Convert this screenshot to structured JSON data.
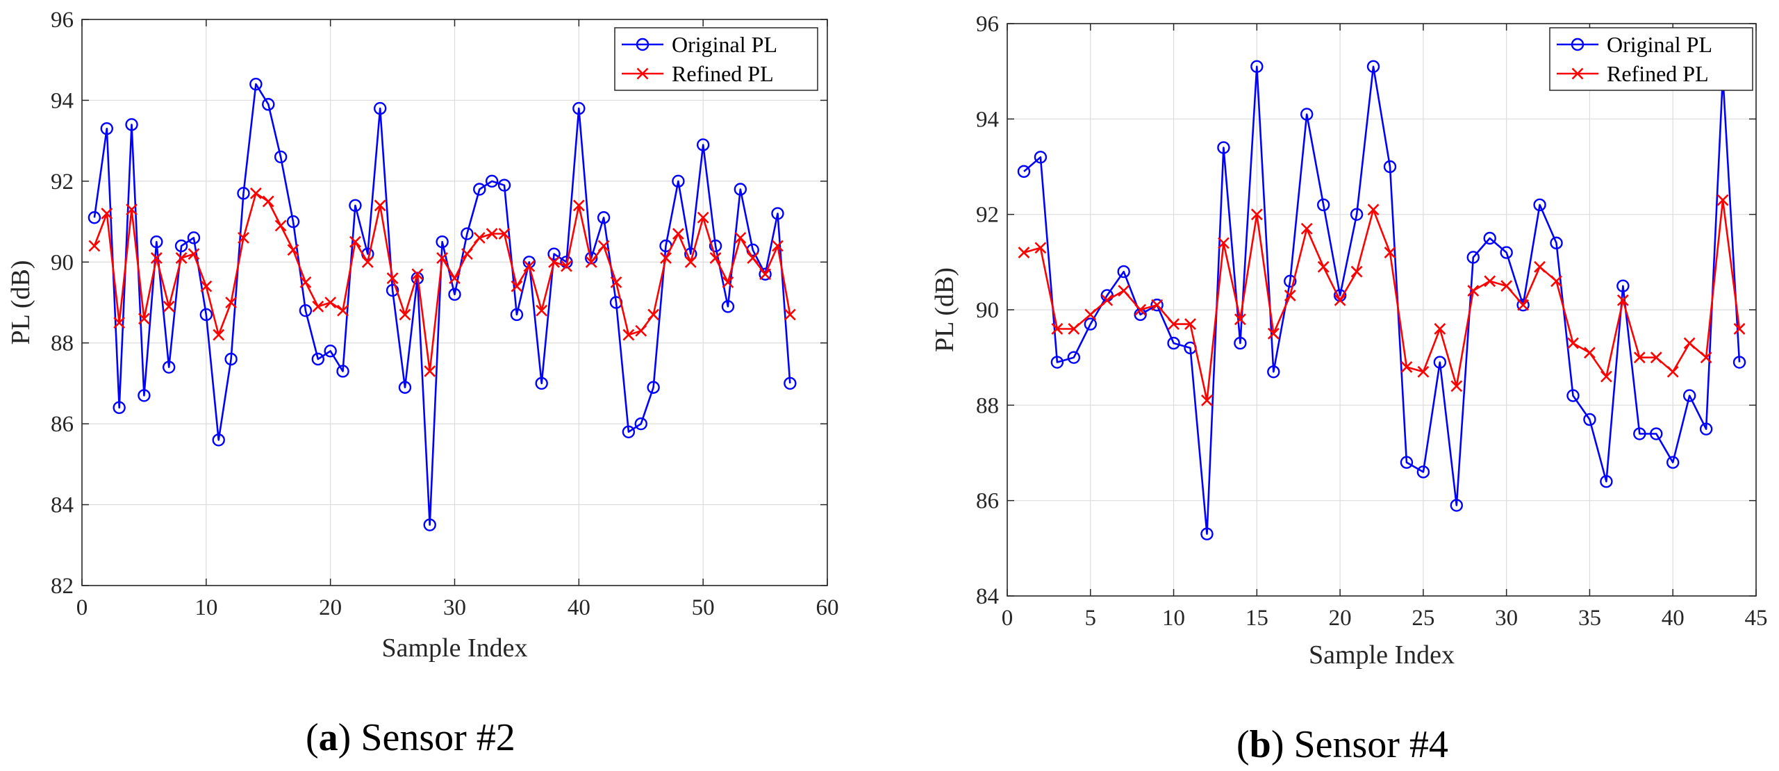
{
  "chart_data": [
    {
      "type": "line",
      "caption": {
        "letter": "a",
        "text": "Sensor #2"
      },
      "xlabel": "Sample Index",
      "ylabel": "PL (dB)",
      "xlim": [
        0,
        60
      ],
      "ylim": [
        82,
        96
      ],
      "xticks": [
        0,
        10,
        20,
        30,
        40,
        50,
        60
      ],
      "yticks": [
        82,
        84,
        86,
        88,
        90,
        92,
        94,
        96
      ],
      "grid": true,
      "legend_position": "top-right",
      "series": [
        {
          "name": "Original PL",
          "color": "#0000ff",
          "marker": "circle",
          "x": [
            1,
            2,
            3,
            4,
            5,
            6,
            7,
            8,
            9,
            10,
            11,
            12,
            13,
            14,
            15,
            16,
            17,
            18,
            19,
            20,
            21,
            22,
            23,
            24,
            25,
            26,
            27,
            28,
            29,
            30,
            31,
            32,
            33,
            34,
            35,
            36,
            37,
            38,
            39,
            40,
            41,
            42,
            43,
            44,
            45,
            46,
            47,
            48,
            49,
            50,
            51,
            52,
            53,
            54,
            55,
            56,
            57
          ],
          "values": [
            91.1,
            93.3,
            86.4,
            93.4,
            86.7,
            90.5,
            87.4,
            90.4,
            90.6,
            88.7,
            85.6,
            87.6,
            91.7,
            94.4,
            93.9,
            92.6,
            91.0,
            88.8,
            87.6,
            87.8,
            87.3,
            91.4,
            90.2,
            93.8,
            89.3,
            86.9,
            89.6,
            83.5,
            90.5,
            89.2,
            90.7,
            91.8,
            92.0,
            91.9,
            88.7,
            90.0,
            87.0,
            90.2,
            90.0,
            93.8,
            90.1,
            91.1,
            89.0,
            85.8,
            86.0,
            86.9,
            90.4,
            92.0,
            90.2,
            92.9,
            90.4,
            88.9,
            91.8,
            90.3,
            89.7,
            91.2,
            87.0
          ]
        },
        {
          "name": "Refined PL",
          "color": "#ff0000",
          "marker": "x",
          "x": [
            1,
            2,
            3,
            4,
            5,
            6,
            7,
            8,
            9,
            10,
            11,
            12,
            13,
            14,
            15,
            16,
            17,
            18,
            19,
            20,
            21,
            22,
            23,
            24,
            25,
            26,
            27,
            28,
            29,
            30,
            31,
            32,
            33,
            34,
            35,
            36,
            37,
            38,
            39,
            40,
            41,
            42,
            43,
            44,
            45,
            46,
            47,
            48,
            49,
            50,
            51,
            52,
            53,
            54,
            55,
            56,
            57
          ],
          "values": [
            90.4,
            91.2,
            88.5,
            91.3,
            88.6,
            90.1,
            88.9,
            90.1,
            90.2,
            89.4,
            88.2,
            89.0,
            90.6,
            91.7,
            91.5,
            90.9,
            90.3,
            89.5,
            88.9,
            89.0,
            88.8,
            90.5,
            90.0,
            91.4,
            89.6,
            88.7,
            89.7,
            87.3,
            90.1,
            89.6,
            90.2,
            90.6,
            90.7,
            90.7,
            89.4,
            89.9,
            88.8,
            90.0,
            89.9,
            91.4,
            90.0,
            90.4,
            89.5,
            88.2,
            88.3,
            88.7,
            90.1,
            90.7,
            90.0,
            91.1,
            90.1,
            89.5,
            90.6,
            90.1,
            89.7,
            90.4,
            88.7
          ]
        }
      ]
    },
    {
      "type": "line",
      "caption": {
        "letter": "b",
        "text": "Sensor #4"
      },
      "xlabel": "Sample Index",
      "ylabel": "PL (dB)",
      "xlim": [
        0,
        45
      ],
      "ylim": [
        84,
        96
      ],
      "xticks": [
        0,
        5,
        10,
        15,
        20,
        25,
        30,
        35,
        40,
        45
      ],
      "yticks": [
        84,
        86,
        88,
        90,
        92,
        94,
        96
      ],
      "grid": true,
      "legend_position": "top-right",
      "series": [
        {
          "name": "Original PL",
          "color": "#0000ff",
          "marker": "circle",
          "x": [
            1,
            2,
            3,
            4,
            5,
            6,
            7,
            8,
            9,
            10,
            11,
            12,
            13,
            14,
            15,
            16,
            17,
            18,
            19,
            20,
            21,
            22,
            23,
            24,
            25,
            26,
            27,
            28,
            29,
            30,
            31,
            32,
            33,
            34,
            35,
            36,
            37,
            38,
            39,
            40,
            41,
            42,
            43,
            44
          ],
          "values": [
            92.9,
            93.2,
            88.9,
            89.0,
            89.7,
            90.3,
            90.8,
            89.9,
            90.1,
            89.3,
            89.2,
            85.3,
            93.4,
            89.3,
            95.1,
            88.7,
            90.6,
            94.1,
            92.2,
            90.3,
            92.0,
            95.1,
            93.0,
            86.8,
            86.6,
            88.9,
            85.9,
            91.1,
            91.5,
            91.2,
            90.1,
            92.2,
            91.4,
            88.2,
            87.7,
            86.4,
            90.5,
            87.4,
            87.4,
            86.8,
            88.2,
            87.5,
            94.9,
            88.9
          ]
        },
        {
          "name": "Refined PL",
          "color": "#ff0000",
          "marker": "x",
          "x": [
            1,
            2,
            3,
            4,
            5,
            6,
            7,
            8,
            9,
            10,
            11,
            12,
            13,
            14,
            15,
            16,
            17,
            18,
            19,
            20,
            21,
            22,
            23,
            24,
            25,
            26,
            27,
            28,
            29,
            30,
            31,
            32,
            33,
            34,
            35,
            36,
            37,
            38,
            39,
            40,
            41,
            42,
            43,
            44
          ],
          "values": [
            91.2,
            91.3,
            89.6,
            89.6,
            89.9,
            90.2,
            90.4,
            90.0,
            90.1,
            89.7,
            89.7,
            88.1,
            91.4,
            89.8,
            92.0,
            89.5,
            90.3,
            91.7,
            90.9,
            90.2,
            90.8,
            92.1,
            91.2,
            88.8,
            88.7,
            89.6,
            88.4,
            90.4,
            90.6,
            90.5,
            90.1,
            90.9,
            90.6,
            89.3,
            89.1,
            88.6,
            90.2,
            89.0,
            89.0,
            88.7,
            89.3,
            89.0,
            92.3,
            89.6
          ]
        }
      ]
    }
  ]
}
